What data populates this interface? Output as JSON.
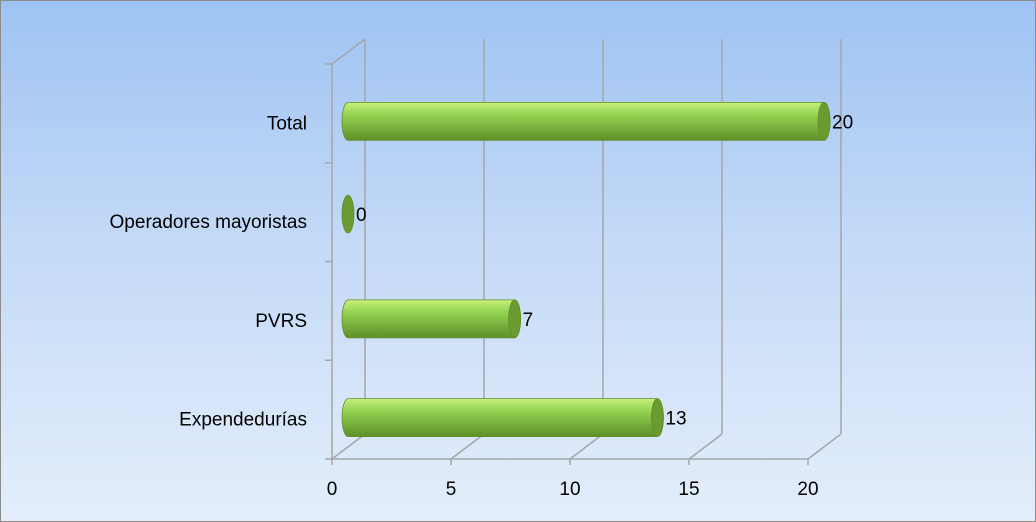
{
  "chart_data": {
    "type": "bar",
    "orientation": "horizontal",
    "style": "3d-cylinder",
    "categories": [
      "Expendedurías",
      "PVRS",
      "Operadores mayoristas",
      "Total"
    ],
    "values": [
      13,
      7,
      0,
      20
    ],
    "data_labels": [
      "13",
      "7",
      "0",
      "20"
    ],
    "x_ticks": [
      "0",
      "5",
      "10",
      "15",
      "20"
    ],
    "xlim": [
      0,
      20
    ],
    "grid": true,
    "legend": "none",
    "colors": {
      "bar_light": "#c6f07a",
      "bar_mid": "#92d050",
      "bar_dark": "#5f8f2a",
      "bar_cap": "#6b9a31",
      "grid": "#a6a6a6"
    }
  }
}
